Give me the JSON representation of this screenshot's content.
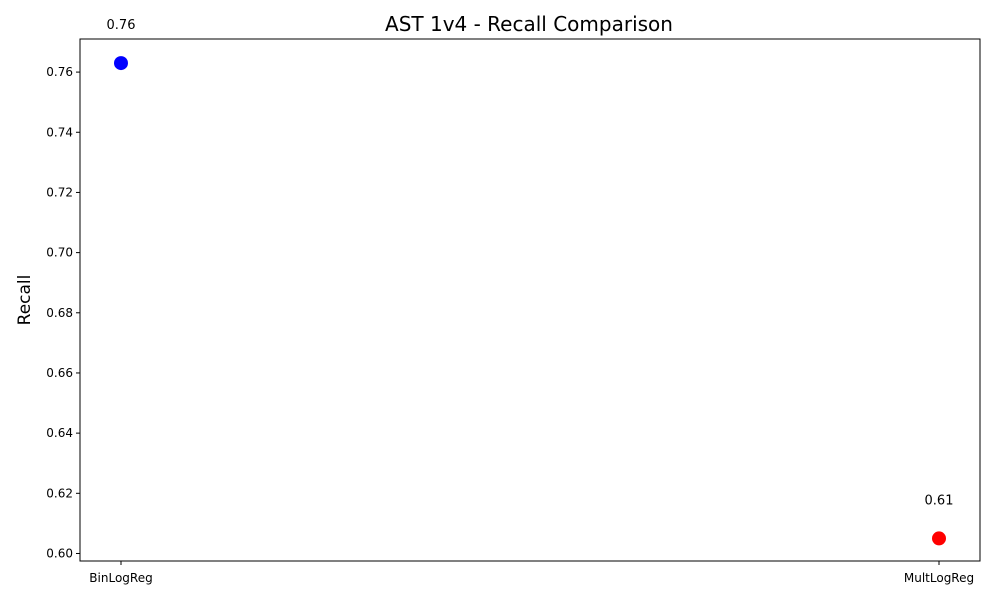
{
  "chart_data": {
    "type": "scatter",
    "title": "AST 1v4 - Recall Comparison",
    "xlabel": "",
    "ylabel": "Recall",
    "categories": [
      "BinLogReg",
      "MultLogReg"
    ],
    "values": [
      0.763,
      0.605
    ],
    "data_labels": [
      "0.76",
      "0.61"
    ],
    "point_colors": [
      "#0000ff",
      "#ff0000"
    ],
    "ylim": [
      0.5975,
      0.771
    ],
    "yticks": [
      0.6,
      0.62,
      0.64,
      0.66,
      0.68,
      0.7,
      0.72,
      0.74,
      0.76
    ],
    "ytick_labels": [
      "0.60",
      "0.62",
      "0.64",
      "0.66",
      "0.68",
      "0.70",
      "0.72",
      "0.74",
      "0.76"
    ],
    "grid": false,
    "legend": "none"
  }
}
